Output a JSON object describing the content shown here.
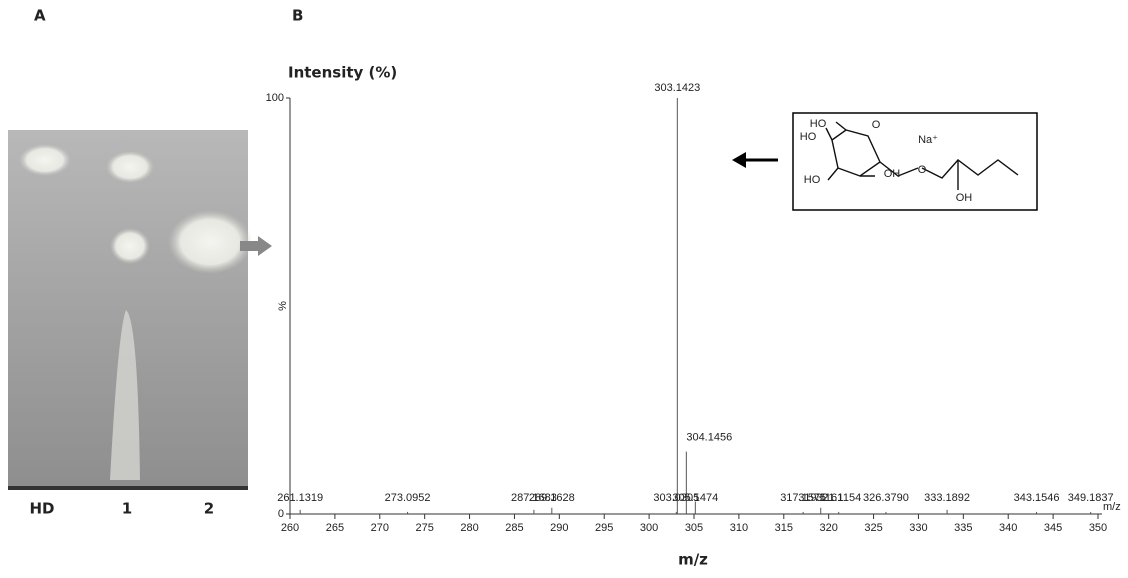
{
  "panel_a": {
    "label": "A",
    "lanes": [
      "HD",
      "1",
      "2"
    ]
  },
  "chart_data": {
    "type": "spectrum",
    "panel_label": "B",
    "ylabel": "Intensity (%)",
    "y_mid_label": "%",
    "xlabel": "m/z",
    "x_axis_end_label": "m/z",
    "x": [
      261.1319,
      273.0952,
      287.1683,
      289.1628,
      303.0305,
      303.1423,
      304.1456,
      305.1474,
      317.1575,
      319.1161,
      321.1154,
      326.379,
      333.1892,
      343.1546,
      349.1837
    ],
    "x_labels": [
      "261.1319",
      "273.0952",
      "287.1683",
      "289.1628",
      "303.0305",
      "303.1423",
      "304.1456",
      "305.1474",
      "317.1575",
      "319.1161",
      "321.1154",
      "326.3790",
      "333.1892",
      "343.1546",
      "349.1837"
    ],
    "values": [
      1,
      0.5,
      1,
      1.5,
      0.5,
      100,
      15,
      3,
      0.5,
      1.5,
      0.5,
      0.5,
      1,
      0.5,
      0.5
    ],
    "color": "#555555",
    "xlim": [
      260,
      350
    ],
    "ylim": [
      0,
      100
    ],
    "xticks": [
      260,
      265,
      270,
      275,
      280,
      285,
      290,
      295,
      300,
      305,
      310,
      315,
      320,
      325,
      330,
      335,
      340,
      345,
      350
    ],
    "yticks": [
      0,
      100
    ]
  },
  "structure": {
    "labels": [
      "HO",
      "HO",
      "HO",
      "OH",
      "O",
      "O",
      "OH",
      "Na⁺"
    ]
  }
}
